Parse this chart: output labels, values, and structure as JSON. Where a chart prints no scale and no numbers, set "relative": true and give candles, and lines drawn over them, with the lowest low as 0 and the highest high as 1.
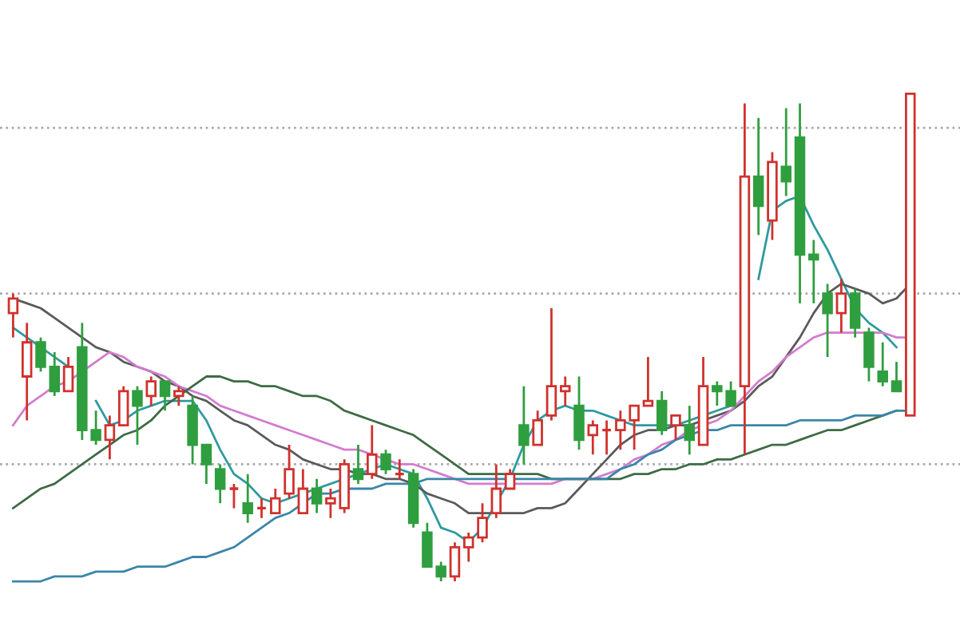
{
  "chart_data": {
    "type": "candlestick",
    "relative": true,
    "tick_labels": false,
    "categories": [
      null,
      null,
      null,
      null,
      null,
      null,
      null,
      null,
      null,
      null,
      null,
      null,
      null,
      null,
      null,
      null,
      null,
      null,
      null,
      null,
      null,
      null,
      null,
      null,
      null,
      null,
      null,
      null,
      null,
      null,
      null,
      null,
      null,
      null,
      null,
      null,
      null,
      null,
      null,
      null,
      null,
      null,
      null,
      null,
      null,
      null,
      null,
      null,
      null,
      null,
      null,
      null,
      null,
      null,
      null,
      null,
      null,
      null,
      null,
      null,
      null,
      null,
      null,
      null,
      null,
      null
    ],
    "ohlc": [
      [
        0.55,
        0.59,
        0.5,
        0.58
      ],
      [
        0.42,
        0.53,
        0.33,
        0.49
      ],
      [
        0.49,
        0.5,
        0.43,
        0.44
      ],
      [
        0.44,
        0.47,
        0.38,
        0.39
      ],
      [
        0.39,
        0.46,
        0.39,
        0.44
      ],
      [
        0.48,
        0.53,
        0.29,
        0.31
      ],
      [
        0.31,
        0.35,
        0.28,
        0.29
      ],
      [
        0.29,
        0.34,
        0.25,
        0.32
      ],
      [
        0.32,
        0.4,
        0.32,
        0.39
      ],
      [
        0.39,
        0.4,
        0.28,
        0.36
      ],
      [
        0.38,
        0.42,
        0.36,
        0.41
      ],
      [
        0.41,
        0.41,
        0.35,
        0.38
      ],
      [
        0.38,
        0.4,
        0.36,
        0.39
      ],
      [
        0.36,
        0.38,
        0.24,
        0.28
      ],
      [
        0.28,
        0.28,
        0.2,
        0.24
      ],
      [
        0.23,
        0.24,
        0.16,
        0.19
      ],
      [
        0.19,
        0.2,
        0.15,
        0.19
      ],
      [
        0.16,
        0.22,
        0.12,
        0.14
      ],
      [
        0.15,
        0.17,
        0.13,
        0.15
      ],
      [
        0.14,
        0.19,
        0.14,
        0.17
      ],
      [
        0.18,
        0.28,
        0.17,
        0.23
      ],
      [
        0.14,
        0.23,
        0.14,
        0.19
      ],
      [
        0.19,
        0.21,
        0.14,
        0.16
      ],
      [
        0.16,
        0.19,
        0.13,
        0.17
      ],
      [
        0.15,
        0.25,
        0.14,
        0.24
      ],
      [
        0.23,
        0.28,
        0.2,
        0.21
      ],
      [
        0.22,
        0.32,
        0.21,
        0.26
      ],
      [
        0.26,
        0.27,
        0.22,
        0.23
      ],
      [
        0.22,
        0.25,
        0.21,
        0.22
      ],
      [
        0.22,
        0.23,
        0.11,
        0.12
      ],
      [
        0.1,
        0.12,
        0.03,
        0.03
      ],
      [
        0.03,
        0.04,
        0.0,
        0.01
      ],
      [
        0.01,
        0.08,
        0.0,
        0.07
      ],
      [
        0.07,
        0.1,
        0.04,
        0.09
      ],
      [
        0.09,
        0.16,
        0.08,
        0.13
      ],
      [
        0.14,
        0.24,
        0.13,
        0.19
      ],
      [
        0.19,
        0.23,
        0.19,
        0.22
      ],
      [
        0.32,
        0.4,
        0.24,
        0.28
      ],
      [
        0.28,
        0.35,
        0.28,
        0.33
      ],
      [
        0.34,
        0.56,
        0.33,
        0.4
      ],
      [
        0.39,
        0.42,
        0.36,
        0.4
      ],
      [
        0.36,
        0.42,
        0.27,
        0.29
      ],
      [
        0.3,
        0.33,
        0.26,
        0.32
      ],
      [
        0.31,
        0.33,
        0.26,
        0.31
      ],
      [
        0.31,
        0.35,
        0.27,
        0.33
      ],
      [
        0.33,
        0.36,
        0.27,
        0.36
      ],
      [
        0.36,
        0.46,
        0.36,
        0.37
      ],
      [
        0.37,
        0.39,
        0.3,
        0.31
      ],
      [
        0.32,
        0.34,
        0.29,
        0.34
      ],
      [
        0.32,
        0.36,
        0.26,
        0.29
      ],
      [
        0.28,
        0.46,
        0.28,
        0.4
      ],
      [
        0.4,
        0.41,
        0.36,
        0.39
      ],
      [
        0.39,
        0.41,
        0.36,
        0.36
      ],
      [
        0.4,
        0.98,
        0.26,
        0.83
      ],
      [
        0.83,
        0.95,
        0.71,
        0.77
      ],
      [
        0.74,
        0.88,
        0.7,
        0.86
      ],
      [
        0.85,
        0.97,
        0.79,
        0.82
      ],
      [
        0.91,
        0.98,
        0.57,
        0.67
      ],
      [
        0.67,
        0.7,
        0.57,
        0.66
      ],
      [
        0.59,
        0.61,
        0.46,
        0.55
      ],
      [
        0.55,
        0.62,
        0.51,
        0.59
      ],
      [
        0.59,
        0.6,
        0.5,
        0.52
      ],
      [
        0.51,
        0.52,
        0.41,
        0.44
      ],
      [
        0.43,
        0.49,
        0.4,
        0.41
      ],
      [
        0.41,
        0.45,
        0.39,
        0.39
      ],
      [
        0.34,
        1.0,
        0.34,
        1.0
      ]
    ],
    "colors": [
      "#d0312d",
      "#d0312d",
      "#2f9e3f",
      "#2f9e3f",
      "#d0312d",
      "#2f9e3f",
      "#2f9e3f",
      "#d0312d",
      "#d0312d",
      "#2f9e3f",
      "#d0312d",
      "#2f9e3f",
      "#d0312d",
      "#2f9e3f",
      "#2f9e3f",
      "#2f9e3f",
      "#d0312d",
      "#2f9e3f",
      "#d0312d",
      "#d0312d",
      "#d0312d",
      "#d0312d",
      "#2f9e3f",
      "#d0312d",
      "#d0312d",
      "#2f9e3f",
      "#d0312d",
      "#2f9e3f",
      "#d0312d",
      "#2f9e3f",
      "#2f9e3f",
      "#2f9e3f",
      "#d0312d",
      "#d0312d",
      "#d0312d",
      "#d0312d",
      "#d0312d",
      "#2f9e3f",
      "#d0312d",
      "#d0312d",
      "#d0312d",
      "#2f9e3f",
      "#d0312d",
      "#d0312d",
      "#d0312d",
      "#d0312d",
      "#d0312d",
      "#2f9e3f",
      "#d0312d",
      "#2f9e3f",
      "#d0312d",
      "#2f9e3f",
      "#2f9e3f",
      "#d0312d",
      "#2f9e3f",
      "#d0312d",
      "#2f9e3f",
      "#2f9e3f",
      "#2f9e3f",
      "#2f9e3f",
      "#d0312d",
      "#2f9e3f",
      "#2f9e3f",
      "#2f9e3f",
      "#2f9e3f",
      "#d0312d"
    ],
    "series": [
      {
        "type": "line",
        "color": "#2e9aa0",
        "values": [
          0.52,
          0.5,
          0.48,
          0.46,
          0.44,
          null,
          0.37,
          0.32,
          0.33,
          0.35,
          0.36,
          0.37,
          0.37,
          0.37,
          0.33,
          0.27,
          0.22,
          0.2,
          0.17,
          0.16,
          0.17,
          0.18,
          0.19,
          0.2,
          0.21,
          0.22,
          0.23,
          0.24,
          0.23,
          0.22,
          0.17,
          0.11,
          0.1,
          0.08,
          0.11,
          0.16,
          0.21,
          0.28,
          0.33,
          0.35,
          0.36,
          0.35,
          0.35,
          0.34,
          0.33,
          0.32,
          0.32,
          0.32,
          0.32,
          0.33,
          0.34,
          0.35,
          0.36,
          null,
          0.62,
          0.76,
          0.78,
          0.79,
          0.73,
          0.68,
          0.62,
          0.56,
          0.53,
          0.51,
          0.48,
          null
        ]
      },
      {
        "type": "line",
        "color": "#5a5a5a",
        "values": [
          0.58,
          0.57,
          0.56,
          0.54,
          0.52,
          0.5,
          0.48,
          0.47,
          0.45,
          0.44,
          0.43,
          0.41,
          0.4,
          0.38,
          0.37,
          0.35,
          0.33,
          0.32,
          0.3,
          0.28,
          0.27,
          0.25,
          0.24,
          0.23,
          0.23,
          0.22,
          0.22,
          0.21,
          0.21,
          0.2,
          0.18,
          0.17,
          0.16,
          0.14,
          0.14,
          0.14,
          0.14,
          0.14,
          0.15,
          0.15,
          0.16,
          0.19,
          0.22,
          0.25,
          0.28,
          0.3,
          0.31,
          0.31,
          0.32,
          0.32,
          0.33,
          0.34,
          0.35,
          0.37,
          0.4,
          0.42,
          0.46,
          0.5,
          0.55,
          0.59,
          0.61,
          0.6,
          0.59,
          0.57,
          0.58,
          0.61
        ]
      },
      {
        "type": "line",
        "color": "#d37ccf",
        "values": [
          0.32,
          0.36,
          0.38,
          0.4,
          0.41,
          0.43,
          0.45,
          0.47,
          0.46,
          0.44,
          0.43,
          0.42,
          0.4,
          0.39,
          0.38,
          0.36,
          0.35,
          0.34,
          0.33,
          0.32,
          0.31,
          0.3,
          0.29,
          0.28,
          0.27,
          0.27,
          0.26,
          0.25,
          0.24,
          0.24,
          0.23,
          0.22,
          0.21,
          0.2,
          0.2,
          0.2,
          0.2,
          0.2,
          0.2,
          0.2,
          0.21,
          0.21,
          0.21,
          0.22,
          0.23,
          0.25,
          0.26,
          0.28,
          0.29,
          0.31,
          0.32,
          0.33,
          0.35,
          0.38,
          0.41,
          0.43,
          0.46,
          0.48,
          0.5,
          0.51,
          0.51,
          0.51,
          0.51,
          0.51,
          0.5,
          0.5
        ]
      },
      {
        "type": "line",
        "color": "#3d6b45",
        "values": [
          0.15,
          0.17,
          0.19,
          0.2,
          0.22,
          0.24,
          0.26,
          0.28,
          0.3,
          0.31,
          0.33,
          0.36,
          0.38,
          0.4,
          0.42,
          0.42,
          0.41,
          0.41,
          0.4,
          0.4,
          0.39,
          0.38,
          0.38,
          0.37,
          0.35,
          0.34,
          0.33,
          0.32,
          0.31,
          0.3,
          0.28,
          0.26,
          0.24,
          0.22,
          0.22,
          0.22,
          0.22,
          0.22,
          0.22,
          0.21,
          0.21,
          0.21,
          0.21,
          0.21,
          0.21,
          0.22,
          0.22,
          0.23,
          0.23,
          0.24,
          0.24,
          0.25,
          0.25,
          0.26,
          0.27,
          0.28,
          0.28,
          0.29,
          0.3,
          0.31,
          0.31,
          0.32,
          0.33,
          0.34,
          0.35,
          null
        ]
      },
      {
        "type": "line",
        "color": "#3a86a8",
        "values": [
          0.0,
          0.0,
          0.0,
          0.01,
          0.01,
          0.01,
          0.02,
          0.02,
          0.02,
          0.03,
          0.03,
          0.03,
          0.04,
          0.05,
          0.05,
          0.06,
          0.07,
          0.09,
          0.11,
          0.13,
          0.14,
          0.16,
          0.18,
          0.18,
          0.19,
          0.19,
          0.19,
          0.2,
          0.2,
          0.2,
          0.21,
          0.21,
          0.21,
          0.21,
          0.21,
          0.21,
          0.21,
          0.21,
          0.21,
          0.21,
          0.21,
          0.21,
          0.21,
          0.21,
          0.23,
          0.24,
          0.26,
          0.27,
          0.29,
          0.3,
          0.31,
          0.31,
          0.32,
          0.32,
          0.32,
          0.32,
          0.32,
          0.33,
          0.33,
          0.33,
          0.33,
          0.34,
          0.34,
          0.34,
          0.35,
          0.35
        ]
      }
    ],
    "ref_lines": [
      {
        "axis": "y",
        "value": 0.93,
        "color": "#aaaaaa",
        "line_style": "dotted"
      },
      {
        "axis": "y",
        "value": 0.59,
        "color": "#aaaaaa",
        "line_style": "dotted"
      },
      {
        "axis": "y",
        "value": 0.24,
        "color": "#aaaaaa",
        "line_style": "dotted"
      }
    ]
  }
}
